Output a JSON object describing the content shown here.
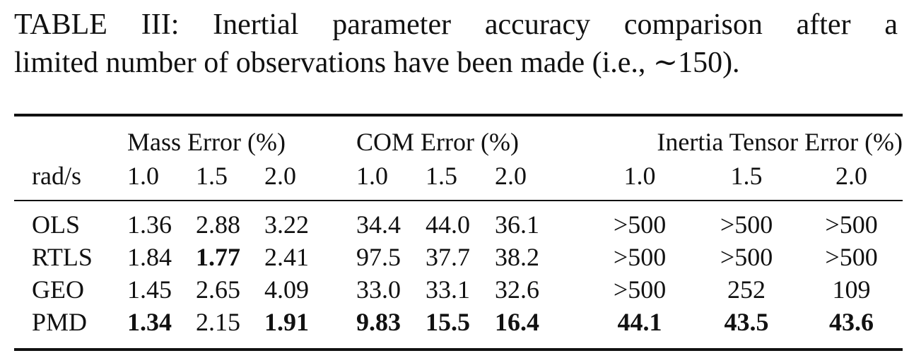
{
  "caption": {
    "line1": "TABLE III: Inertial parameter accuracy comparison after a",
    "line2": "limited number of observations have been made (i.e., ∼150)."
  },
  "table": {
    "group_headers": {
      "mass": "Mass Error (%)",
      "com": "COM Error (%)",
      "inertia": "Inertia Tensor Error (%)"
    },
    "row_header": "rad/s",
    "speeds": [
      "1.0",
      "1.5",
      "2.0",
      "1.0",
      "1.5",
      "2.0",
      "1.0",
      "1.5",
      "2.0"
    ],
    "rows": [
      {
        "method": "OLS",
        "values": [
          "1.36",
          "2.88",
          "3.22",
          "34.4",
          "44.0",
          "36.1",
          ">500",
          ">500",
          ">500"
        ]
      },
      {
        "method": "RTLS",
        "values": [
          "1.84",
          "1.77",
          "2.41",
          "97.5",
          "37.7",
          "38.2",
          ">500",
          ">500",
          ">500"
        ]
      },
      {
        "method": "GEO",
        "values": [
          "1.45",
          "2.65",
          "4.09",
          "33.0",
          "33.1",
          "32.6",
          ">500",
          "252",
          "109"
        ]
      },
      {
        "method": "PMD",
        "values": [
          "1.34",
          "2.15",
          "1.91",
          "9.83",
          "15.5",
          "16.4",
          "44.1",
          "43.5",
          "43.6"
        ]
      }
    ],
    "bold_cells": [
      [
        1,
        1
      ],
      [
        3,
        0
      ],
      [
        3,
        2
      ],
      [
        3,
        3
      ],
      [
        3,
        4
      ],
      [
        3,
        5
      ],
      [
        3,
        6
      ],
      [
        3,
        7
      ],
      [
        3,
        8
      ]
    ]
  }
}
